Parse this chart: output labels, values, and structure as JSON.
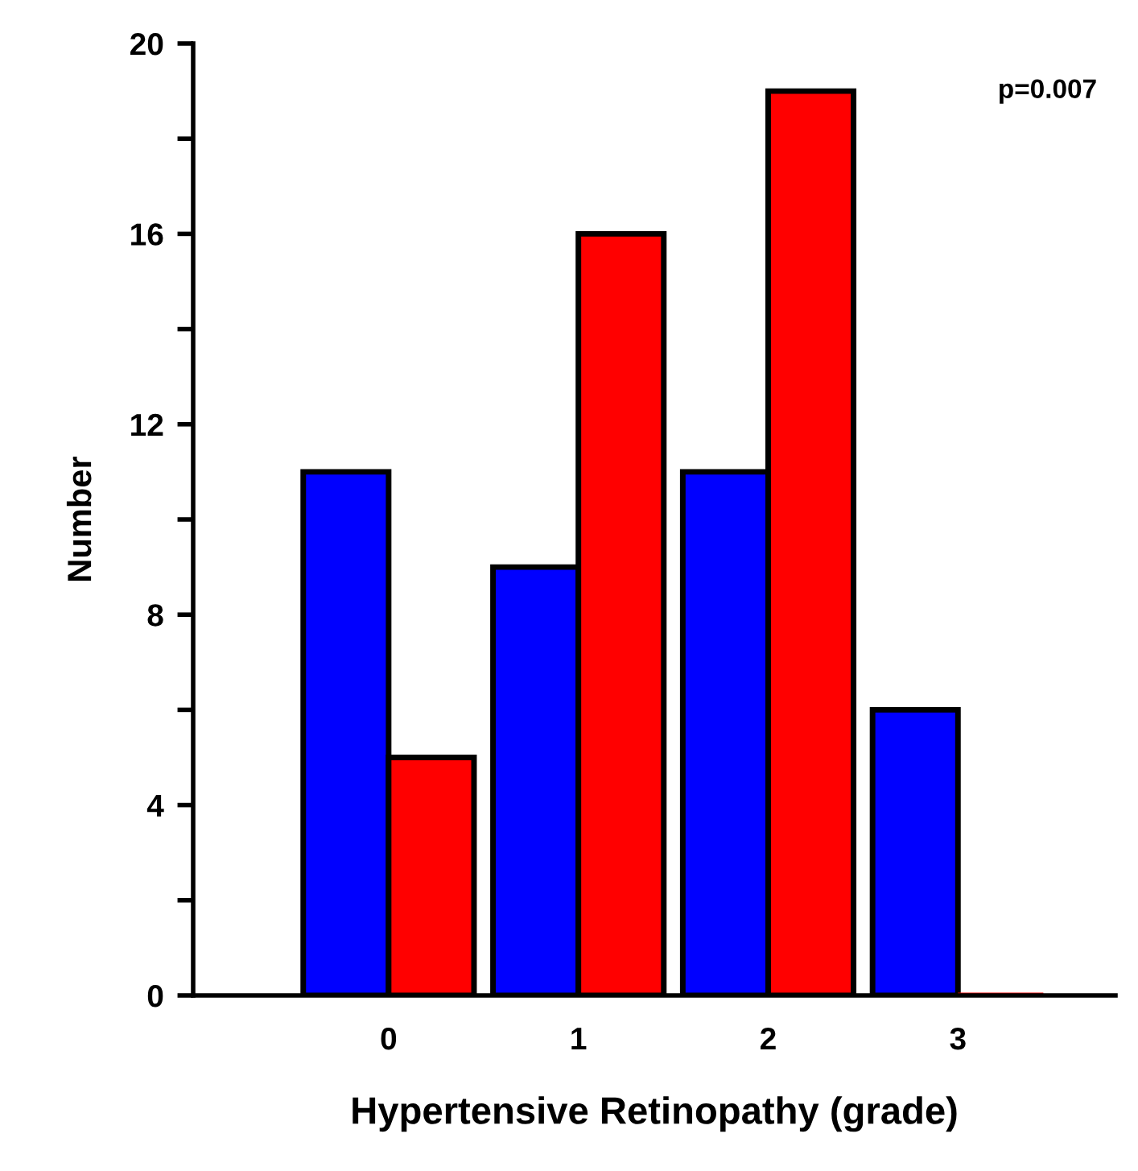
{
  "chart_data": {
    "type": "bar",
    "xlabel": "Hypertensive Retinopathy (grade)",
    "ylabel": "Number",
    "categories": [
      "0",
      "1",
      "2",
      "3"
    ],
    "series": [
      {
        "color": "#0000ff",
        "values": [
          11,
          9,
          11,
          6
        ]
      },
      {
        "color": "#ff0000",
        "values": [
          5,
          16,
          19,
          0
        ]
      }
    ],
    "ylim": [
      0,
      20
    ],
    "yticks": [
      0,
      {
        "value": 2,
        "label": null
      },
      4,
      {
        "value": 6,
        "label": null
      },
      8,
      {
        "value": 10,
        "label": null
      },
      12,
      {
        "value": 14,
        "label": null
      },
      16,
      {
        "value": 18,
        "label": null
      },
      20
    ],
    "annotations": [
      "p=0.007"
    ],
    "grid": false,
    "legend": false
  }
}
